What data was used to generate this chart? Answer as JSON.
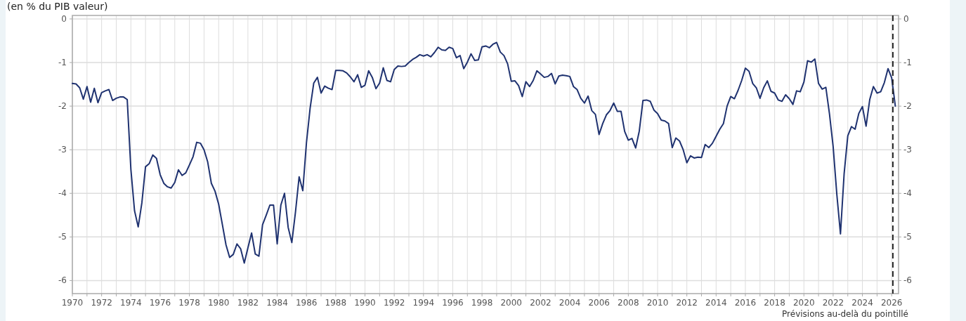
{
  "chart_data": {
    "type": "line",
    "subtitle": "(en % du PIB valeur)",
    "xlim": [
      1970,
      2026.47
    ],
    "xticks": [
      1970,
      {
        "value": 1971,
        "label": null
      },
      1972,
      {
        "value": 1973,
        "label": null
      },
      1974,
      {
        "value": 1975,
        "label": null
      },
      1976,
      {
        "value": 1977,
        "label": null
      },
      1978,
      {
        "value": 1979,
        "label": null
      },
      1980,
      {
        "value": 1981,
        "label": null
      },
      1982,
      {
        "value": 1983,
        "label": null
      },
      1984,
      {
        "value": 1985,
        "label": null
      },
      1986,
      {
        "value": 1987,
        "label": null
      },
      1988,
      {
        "value": 1989,
        "label": null
      },
      1990,
      {
        "value": 1991,
        "label": null
      },
      1992,
      {
        "value": 1993,
        "label": null
      },
      1994,
      {
        "value": 1995,
        "label": null
      },
      1996,
      {
        "value": 1997,
        "label": null
      },
      1998,
      {
        "value": 1999,
        "label": null
      },
      2000,
      {
        "value": 2001,
        "label": null
      },
      2002,
      {
        "value": 2003,
        "label": null
      },
      2004,
      {
        "value": 2005,
        "label": null
      },
      2006,
      {
        "value": 2007,
        "label": null
      },
      2008,
      {
        "value": 2009,
        "label": null
      },
      2010,
      {
        "value": 2011,
        "label": null
      },
      2012,
      {
        "value": 2013,
        "label": null
      },
      2014,
      {
        "value": 2015,
        "label": null
      },
      2016,
      {
        "value": 2017,
        "label": null
      },
      2018,
      {
        "value": 2019,
        "label": null
      },
      2020,
      {
        "value": 2021,
        "label": null
      },
      2022,
      {
        "value": 2023,
        "label": null
      },
      2024,
      {
        "value": 2025,
        "label": null
      },
      2026
    ],
    "ylim": [
      -6.3,
      0.08
    ],
    "yticks": [
      0,
      -1,
      -2,
      -3,
      -4,
      -5,
      -6
    ],
    "y2lim": [
      -6.3,
      0.08
    ],
    "y2ticks": [
      0,
      -1,
      -2,
      -3,
      -4,
      -5,
      -6
    ],
    "grid": true,
    "ref_lines": [
      {
        "axis": "x",
        "value": 2026.08,
        "color": "#222222",
        "line_style": "dashed"
      }
    ],
    "annotations": [
      "Prévisions au-delà du pointillé"
    ],
    "series": [
      {
        "color": "#1f3270",
        "x": [
          1970.0,
          1970.25,
          1970.5,
          1970.75,
          1971.0,
          1971.25,
          1971.5,
          1971.75,
          1972.0,
          1972.25,
          1972.5,
          1972.75,
          1973.0,
          1973.25,
          1973.5,
          1973.75,
          1974.0,
          1974.25,
          1974.5,
          1974.75,
          1975.0,
          1975.25,
          1975.5,
          1975.75,
          1976.0,
          1976.25,
          1976.5,
          1976.75,
          1977.0,
          1977.25,
          1977.5,
          1977.75,
          1978.0,
          1978.25,
          1978.5,
          1978.75,
          1979.0,
          1979.25,
          1979.5,
          1979.75,
          1980.0,
          1980.25,
          1980.5,
          1980.75,
          1981.0,
          1981.25,
          1981.5,
          1981.75,
          1982.0,
          1982.25,
          1982.5,
          1982.75,
          1983.0,
          1983.25,
          1983.5,
          1983.75,
          1984.0,
          1984.25,
          1984.5,
          1984.75,
          1985.0,
          1985.25,
          1985.5,
          1985.75,
          1986.0,
          1986.25,
          1986.5,
          1986.75,
          1987.0,
          1987.25,
          1987.5,
          1987.75,
          1988.0,
          1988.25,
          1988.5,
          1988.75,
          1989.0,
          1989.25,
          1989.5,
          1989.75,
          1990.0,
          1990.25,
          1990.5,
          1990.75,
          1991.0,
          1991.25,
          1991.5,
          1991.75,
          1992.0,
          1992.25,
          1992.5,
          1992.75,
          1993.0,
          1993.25,
          1993.5,
          1993.75,
          1994.0,
          1994.25,
          1994.5,
          1994.75,
          1995.0,
          1995.25,
          1995.5,
          1995.75,
          1996.0,
          1996.25,
          1996.5,
          1996.75,
          1997.0,
          1997.25,
          1997.5,
          1997.75,
          1998.0,
          1998.25,
          1998.5,
          1998.75,
          1999.0,
          1999.25,
          1999.5,
          1999.75,
          2000.0,
          2000.25,
          2000.5,
          2000.75,
          2001.0,
          2001.25,
          2001.5,
          2001.75,
          2002.0,
          2002.25,
          2002.5,
          2002.75,
          2003.0,
          2003.25,
          2003.5,
          2003.75,
          2004.0,
          2004.25,
          2004.5,
          2004.75,
          2005.0,
          2005.25,
          2005.5,
          2005.75,
          2006.0,
          2006.25,
          2006.5,
          2006.75,
          2007.0,
          2007.25,
          2007.5,
          2007.75,
          2008.0,
          2008.25,
          2008.5,
          2008.75,
          2009.0,
          2009.25,
          2009.5,
          2009.75,
          2010.0,
          2010.25,
          2010.5,
          2010.75,
          2011.0,
          2011.25,
          2011.5,
          2011.75,
          2012.0,
          2012.25,
          2012.5,
          2012.75,
          2013.0,
          2013.25,
          2013.5,
          2013.75,
          2014.0,
          2014.25,
          2014.5,
          2014.75,
          2015.0,
          2015.25,
          2015.5,
          2015.75,
          2016.0,
          2016.25,
          2016.5,
          2016.75,
          2017.0,
          2017.25,
          2017.5,
          2017.75,
          2018.0,
          2018.25,
          2018.5,
          2018.75,
          2019.0,
          2019.25,
          2019.5,
          2019.75,
          2020.0,
          2020.25,
          2020.5,
          2020.75,
          2021.0,
          2021.25,
          2021.5,
          2021.75,
          2022.0,
          2022.25,
          2022.5,
          2022.75,
          2023.0,
          2023.25,
          2023.5,
          2023.75,
          2024.0,
          2024.25,
          2024.5,
          2024.75,
          2025.0,
          2025.25,
          2025.5,
          2025.75,
          2026.0,
          2026.25
        ],
        "values": [
          -1.48,
          -1.49,
          -1.58,
          -1.84,
          -1.55,
          -1.91,
          -1.59,
          -1.92,
          -1.69,
          -1.65,
          -1.62,
          -1.87,
          -1.82,
          -1.79,
          -1.79,
          -1.85,
          -3.45,
          -4.4,
          -4.77,
          -4.22,
          -3.39,
          -3.32,
          -3.12,
          -3.2,
          -3.57,
          -3.77,
          -3.85,
          -3.88,
          -3.75,
          -3.46,
          -3.59,
          -3.53,
          -3.35,
          -3.16,
          -2.83,
          -2.85,
          -3.0,
          -3.28,
          -3.77,
          -3.95,
          -4.25,
          -4.71,
          -5.18,
          -5.47,
          -5.4,
          -5.16,
          -5.27,
          -5.6,
          -5.25,
          -4.91,
          -5.39,
          -5.44,
          -4.72,
          -4.5,
          -4.27,
          -4.27,
          -5.16,
          -4.27,
          -4.0,
          -4.78,
          -5.13,
          -4.43,
          -3.62,
          -3.94,
          -2.84,
          -2.05,
          -1.47,
          -1.34,
          -1.7,
          -1.54,
          -1.59,
          -1.62,
          -1.18,
          -1.18,
          -1.19,
          -1.24,
          -1.33,
          -1.44,
          -1.28,
          -1.57,
          -1.52,
          -1.19,
          -1.34,
          -1.6,
          -1.47,
          -1.12,
          -1.41,
          -1.44,
          -1.16,
          -1.08,
          -1.09,
          -1.08,
          -1.0,
          -0.93,
          -0.88,
          -0.82,
          -0.85,
          -0.82,
          -0.87,
          -0.77,
          -0.65,
          -0.71,
          -0.72,
          -0.65,
          -0.68,
          -0.89,
          -0.84,
          -1.14,
          -0.99,
          -0.8,
          -0.95,
          -0.94,
          -0.64,
          -0.62,
          -0.66,
          -0.58,
          -0.54,
          -0.76,
          -0.84,
          -1.03,
          -1.43,
          -1.42,
          -1.53,
          -1.78,
          -1.44,
          -1.55,
          -1.41,
          -1.19,
          -1.26,
          -1.34,
          -1.32,
          -1.25,
          -1.49,
          -1.31,
          -1.29,
          -1.3,
          -1.32,
          -1.55,
          -1.62,
          -1.82,
          -1.93,
          -1.77,
          -2.1,
          -2.19,
          -2.65,
          -2.4,
          -2.2,
          -2.1,
          -1.93,
          -2.12,
          -2.12,
          -2.58,
          -2.78,
          -2.74,
          -2.96,
          -2.57,
          -1.87,
          -1.86,
          -1.89,
          -2.09,
          -2.17,
          -2.32,
          -2.34,
          -2.4,
          -2.95,
          -2.73,
          -2.8,
          -3.0,
          -3.3,
          -3.14,
          -3.19,
          -3.17,
          -3.18,
          -2.88,
          -2.95,
          -2.85,
          -2.69,
          -2.53,
          -2.4,
          -2.0,
          -1.78,
          -1.83,
          -1.64,
          -1.41,
          -1.13,
          -1.2,
          -1.48,
          -1.58,
          -1.82,
          -1.58,
          -1.42,
          -1.66,
          -1.7,
          -1.86,
          -1.89,
          -1.74,
          -1.83,
          -1.96,
          -1.65,
          -1.67,
          -1.45,
          -0.96,
          -0.99,
          -0.92,
          -1.48,
          -1.61,
          -1.57,
          -2.18,
          -2.93,
          -4.02,
          -4.93,
          -3.55,
          -2.68,
          -2.47,
          -2.53,
          -2.17,
          -2.01,
          -2.46,
          -1.85,
          -1.55,
          -1.7,
          -1.67,
          -1.46,
          -1.14,
          -1.35,
          -2.0
        ]
      }
    ]
  }
}
